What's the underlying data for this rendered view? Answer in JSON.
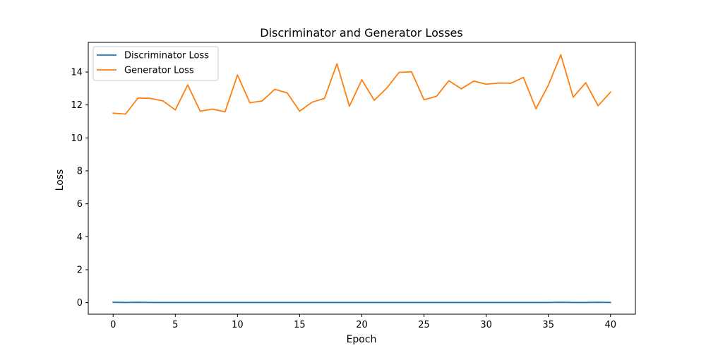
{
  "chart_data": {
    "type": "line",
    "title": "Discriminator and Generator Losses",
    "xlabel": "Epoch",
    "ylabel": "Loss",
    "xlim": [
      -2,
      42
    ],
    "ylim": [
      -0.7,
      15.8
    ],
    "xticks": [
      0,
      5,
      10,
      15,
      20,
      25,
      30,
      35,
      40
    ],
    "yticks": [
      0,
      2,
      4,
      6,
      8,
      10,
      12,
      14
    ],
    "grid": false,
    "legend_position": "top-left",
    "x": [
      0,
      1,
      2,
      3,
      4,
      5,
      6,
      7,
      8,
      9,
      10,
      11,
      12,
      13,
      14,
      15,
      16,
      17,
      18,
      19,
      20,
      21,
      22,
      23,
      24,
      25,
      26,
      27,
      28,
      29,
      30,
      31,
      32,
      33,
      34,
      35,
      36,
      37,
      38,
      39,
      40
    ],
    "series": [
      {
        "name": "Discriminator Loss",
        "color": "#1f77b4",
        "values": [
          0.02,
          0.01,
          0.02,
          0.01,
          0.01,
          0.01,
          0.01,
          0.01,
          0.01,
          0.01,
          0.01,
          0.01,
          0.01,
          0.01,
          0.01,
          0.01,
          0.01,
          0.01,
          0.01,
          0.01,
          0.01,
          0.01,
          0.01,
          0.01,
          0.01,
          0.01,
          0.01,
          0.01,
          0.01,
          0.01,
          0.01,
          0.01,
          0.01,
          0.01,
          0.01,
          0.01,
          0.02,
          0.01,
          0.01,
          0.02,
          0.01
        ]
      },
      {
        "name": "Generator Loss",
        "color": "#ff7f0e",
        "values": [
          11.5,
          11.45,
          12.42,
          12.4,
          12.25,
          11.7,
          13.22,
          11.62,
          11.75,
          11.58,
          13.82,
          12.13,
          12.25,
          12.95,
          12.73,
          11.62,
          12.17,
          12.4,
          14.5,
          11.92,
          13.53,
          12.28,
          13.02,
          13.98,
          14.01,
          12.32,
          12.52,
          13.47,
          12.98,
          13.45,
          13.26,
          13.33,
          13.32,
          13.67,
          11.77,
          13.2,
          15.05,
          12.47,
          13.35,
          11.95,
          12.78
        ]
      }
    ]
  }
}
